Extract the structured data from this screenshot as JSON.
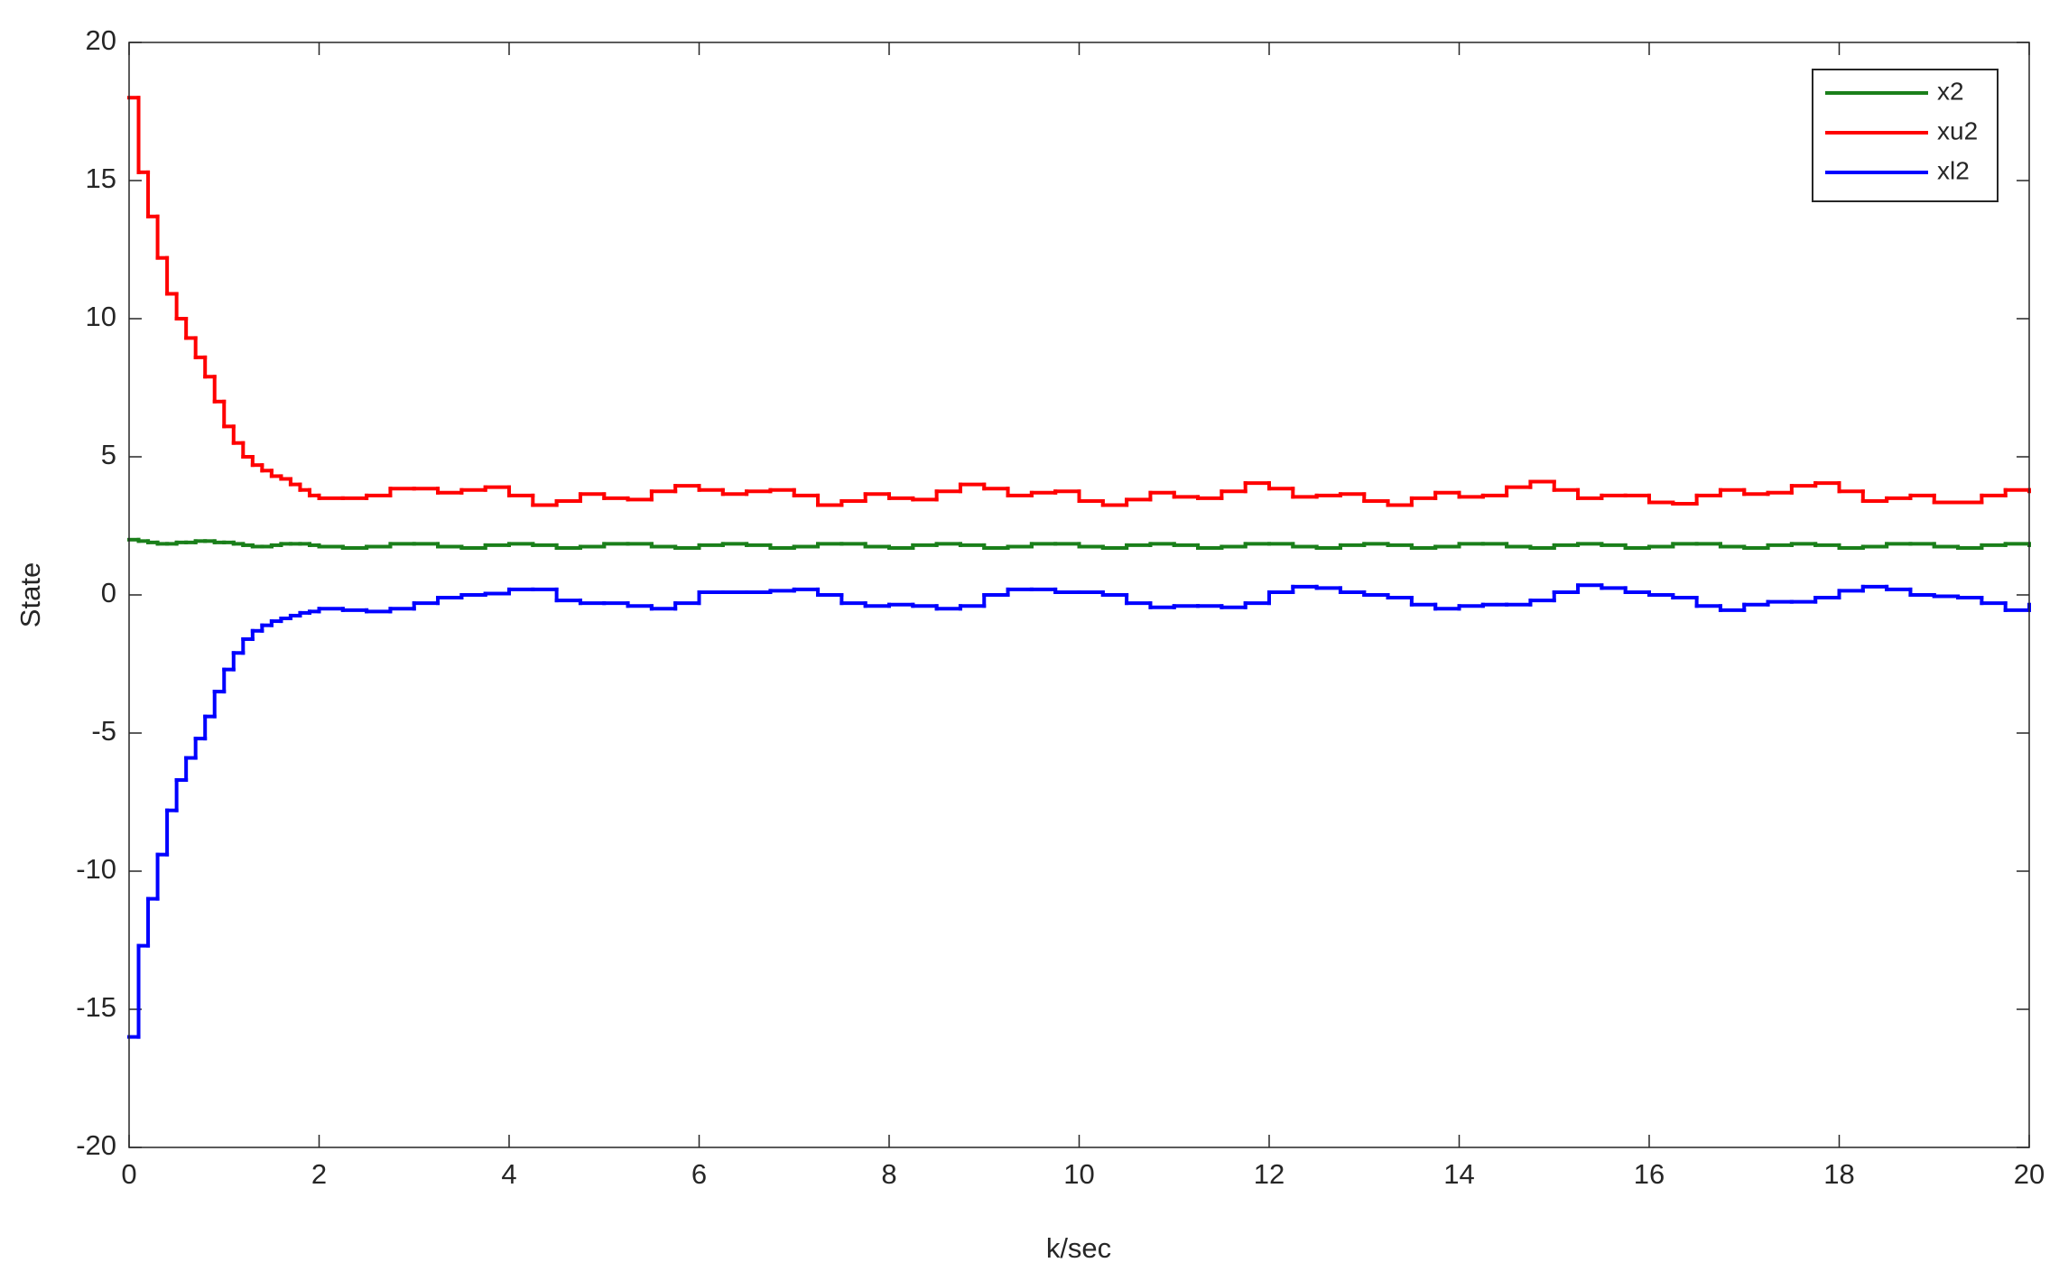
{
  "chart_data": {
    "type": "line",
    "drawstyle": "steps-post",
    "grid": false,
    "legend": "upper right",
    "xlabel": "k/sec",
    "ylabel": "State",
    "xlim": [
      0,
      20
    ],
    "ylim": [
      -20,
      20
    ],
    "xticks": [
      0,
      2,
      4,
      6,
      8,
      10,
      12,
      14,
      16,
      18,
      20
    ],
    "yticks": [
      -20,
      -15,
      -10,
      -5,
      0,
      5,
      10,
      15,
      20
    ],
    "x": [
      0,
      0.1,
      0.2,
      0.3,
      0.4,
      0.5,
      0.6,
      0.7,
      0.8,
      0.9,
      1.0,
      1.1,
      1.2,
      1.3,
      1.4,
      1.5,
      1.6,
      1.7,
      1.8,
      1.9,
      2.0,
      2.25,
      2.5,
      2.75,
      3.0,
      3.25,
      3.5,
      3.75,
      4.0,
      4.25,
      4.5,
      4.75,
      5.0,
      5.25,
      5.5,
      5.75,
      6.0,
      6.25,
      6.5,
      6.75,
      7.0,
      7.25,
      7.5,
      7.75,
      8.0,
      8.25,
      8.5,
      8.75,
      9.0,
      9.25,
      9.5,
      9.75,
      10.0,
      10.25,
      10.5,
      10.75,
      11.0,
      11.25,
      11.5,
      11.75,
      12.0,
      12.25,
      12.5,
      12.75,
      13.0,
      13.25,
      13.5,
      13.75,
      14.0,
      14.25,
      14.5,
      14.75,
      15.0,
      15.25,
      15.5,
      15.75,
      16.0,
      16.25,
      16.5,
      16.75,
      17.0,
      17.25,
      17.5,
      17.75,
      18.0,
      18.25,
      18.5,
      18.75,
      19.0,
      19.25,
      19.5,
      19.75,
      20.0
    ],
    "series": [
      {
        "name": "x2",
        "color": "#1a7f1a",
        "values": [
          2.0,
          1.95,
          1.9,
          1.85,
          1.85,
          1.9,
          1.9,
          1.95,
          1.95,
          1.9,
          1.9,
          1.85,
          1.8,
          1.75,
          1.75,
          1.8,
          1.85,
          1.85,
          1.85,
          1.8,
          1.75,
          1.7,
          1.75,
          1.85,
          1.85,
          1.75,
          1.7,
          1.8,
          1.85,
          1.8,
          1.7,
          1.75,
          1.85,
          1.85,
          1.75,
          1.7,
          1.8,
          1.85,
          1.8,
          1.7,
          1.75,
          1.85,
          1.85,
          1.75,
          1.7,
          1.8,
          1.85,
          1.8,
          1.7,
          1.75,
          1.85,
          1.85,
          1.75,
          1.7,
          1.8,
          1.85,
          1.8,
          1.7,
          1.75,
          1.85,
          1.85,
          1.75,
          1.7,
          1.8,
          1.85,
          1.8,
          1.7,
          1.75,
          1.85,
          1.85,
          1.75,
          1.7,
          1.8,
          1.85,
          1.8,
          1.7,
          1.75,
          1.85,
          1.85,
          1.75,
          1.7,
          1.8,
          1.85,
          1.8,
          1.7,
          1.75,
          1.85,
          1.85,
          1.75,
          1.7,
          1.8,
          1.85,
          1.8
        ]
      },
      {
        "name": "xu2",
        "color": "#ff0000",
        "values": [
          18,
          15.3,
          13.7,
          12.2,
          10.9,
          10,
          9.3,
          8.6,
          7.9,
          7,
          6.1,
          5.5,
          5.0,
          4.7,
          4.5,
          4.3,
          4.2,
          4.0,
          3.8,
          3.6,
          3.5,
          3.5,
          3.6,
          3.85,
          3.85,
          3.7,
          3.8,
          3.9,
          3.6,
          3.25,
          3.4,
          3.65,
          3.5,
          3.45,
          3.75,
          3.95,
          3.8,
          3.65,
          3.75,
          3.8,
          3.6,
          3.25,
          3.4,
          3.65,
          3.5,
          3.45,
          3.75,
          4.0,
          3.85,
          3.6,
          3.7,
          3.75,
          3.4,
          3.25,
          3.45,
          3.7,
          3.55,
          3.5,
          3.75,
          4.05,
          3.85,
          3.55,
          3.6,
          3.65,
          3.4,
          3.25,
          3.5,
          3.7,
          3.55,
          3.6,
          3.9,
          4.1,
          3.8,
          3.5,
          3.6,
          3.6,
          3.35,
          3.3,
          3.6,
          3.8,
          3.65,
          3.7,
          3.95,
          4.05,
          3.75,
          3.4,
          3.5,
          3.6,
          3.35,
          3.35,
          3.6,
          3.8,
          3.75
        ]
      },
      {
        "name": "xl2",
        "color": "#0000ff",
        "values": [
          -16,
          -12.7,
          -11,
          -9.4,
          -7.8,
          -6.7,
          -5.9,
          -5.2,
          -4.4,
          -3.5,
          -2.7,
          -2.1,
          -1.6,
          -1.3,
          -1.1,
          -0.95,
          -0.85,
          -0.75,
          -0.65,
          -0.6,
          -0.5,
          -0.55,
          -0.6,
          -0.5,
          -0.3,
          -0.1,
          0,
          0.05,
          0.2,
          0.2,
          -0.2,
          -0.3,
          -0.3,
          -0.4,
          -0.5,
          -0.3,
          0.1,
          0.1,
          0.1,
          0.15,
          0.2,
          0,
          -0.3,
          -0.4,
          -0.35,
          -0.4,
          -0.5,
          -0.4,
          0,
          0.2,
          0.2,
          0.1,
          0.1,
          0,
          -0.3,
          -0.45,
          -0.4,
          -0.4,
          -0.45,
          -0.3,
          0.1,
          0.3,
          0.25,
          0.1,
          0,
          -0.1,
          -0.35,
          -0.5,
          -0.4,
          -0.35,
          -0.35,
          -0.2,
          0.1,
          0.35,
          0.25,
          0.1,
          0,
          -0.1,
          -0.4,
          -0.55,
          -0.35,
          -0.25,
          -0.25,
          -0.1,
          0.15,
          0.3,
          0.2,
          0,
          -0.05,
          -0.1,
          -0.3,
          -0.55,
          -0.35
        ]
      }
    ]
  }
}
